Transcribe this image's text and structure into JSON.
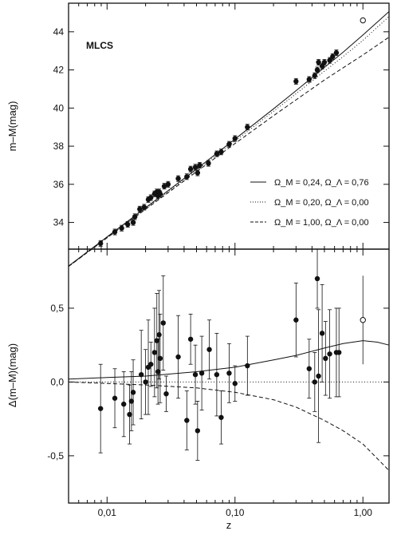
{
  "chart_data": [
    {
      "type": "scatter",
      "panel": "top",
      "annotation": "MLCS",
      "xlabel": "",
      "ylabel": "m–M(mag)",
      "xscale": "log",
      "xlim": [
        0.005,
        1.6
      ],
      "ylim": [
        32.6,
        45.5
      ],
      "y_ticks": [
        34,
        36,
        38,
        40,
        42,
        44
      ],
      "y_tick_labels": [
        "34",
        "36",
        "38",
        "40",
        "42",
        "44"
      ],
      "legend_position": "lower-right",
      "series": [
        {
          "name": "Ω_M = 0,24, Ω_Λ = 0,76",
          "style": "solid",
          "x": [
            0.005,
            0.01,
            0.02,
            0.05,
            0.1,
            0.2,
            0.3,
            0.5,
            0.7,
            1.0,
            1.6
          ],
          "y": [
            31.71,
            33.24,
            34.77,
            36.8,
            38.37,
            39.96,
            40.91,
            42.13,
            42.93,
            43.83,
            45.06
          ]
        },
        {
          "name": "Ω_M = 0,20, Ω_Λ = 0,00",
          "style": "dotted",
          "x": [
            0.005,
            0.01,
            0.02,
            0.05,
            0.1,
            0.2,
            0.3,
            0.5,
            0.7,
            1.0,
            1.6
          ],
          "y": [
            31.69,
            33.2,
            34.72,
            36.73,
            38.27,
            39.83,
            40.75,
            41.93,
            42.7,
            43.55,
            44.8
          ]
        },
        {
          "name": "Ω_M = 1,00, Ω_Λ = 0,00",
          "style": "dashed",
          "x": [
            0.005,
            0.01,
            0.02,
            0.05,
            0.1,
            0.2,
            0.3,
            0.5,
            0.7,
            1.0,
            1.6
          ],
          "y": [
            31.69,
            33.19,
            34.69,
            36.66,
            38.14,
            39.6,
            40.43,
            41.47,
            42.11,
            42.78,
            43.72
          ]
        }
      ],
      "points": {
        "x": [
          0.0089,
          0.0115,
          0.013,
          0.0145,
          0.016,
          0.0165,
          0.018,
          0.0195,
          0.021,
          0.022,
          0.0235,
          0.0245,
          0.025,
          0.0255,
          0.026,
          0.028,
          0.03,
          0.036,
          0.042,
          0.045,
          0.049,
          0.051,
          0.053,
          0.062,
          0.072,
          0.078,
          0.09,
          0.1,
          0.125,
          0.3,
          0.38,
          0.42,
          0.44,
          0.45,
          0.48,
          0.5,
          0.55,
          0.58,
          0.62
        ],
        "y": [
          32.9,
          33.5,
          33.7,
          33.9,
          34.0,
          34.3,
          34.7,
          34.8,
          35.2,
          35.3,
          35.5,
          35.6,
          35.4,
          35.6,
          35.5,
          35.9,
          36.0,
          36.3,
          36.4,
          36.8,
          36.9,
          36.6,
          37.0,
          37.1,
          37.6,
          37.7,
          38.1,
          38.4,
          39.0,
          41.4,
          41.5,
          41.7,
          42.0,
          42.4,
          42.2,
          42.4,
          42.5,
          42.7,
          42.9
        ],
        "open_point": {
          "x": 1.0,
          "y": 44.6
        }
      }
    },
    {
      "type": "scatter",
      "panel": "bottom",
      "xlabel": "z",
      "ylabel": "Δ(m–M)(mag)",
      "xscale": "log",
      "xlim": [
        0.005,
        1.6
      ],
      "ylim": [
        -0.82,
        0.9
      ],
      "x_ticks": [
        0.01,
        0.1,
        1.0
      ],
      "x_tick_labels": [
        "0,01",
        "0,10",
        "1,00"
      ],
      "y_ticks": [
        -0.5,
        0.0,
        0.5
      ],
      "y_tick_labels": [
        "-0,5",
        "0,0",
        "0,5"
      ],
      "series": [
        {
          "name": "Ω_M = 0,24, Ω_Λ = 0,76",
          "style": "solid",
          "x": [
            0.005,
            0.01,
            0.02,
            0.05,
            0.1,
            0.2,
            0.3,
            0.5,
            0.7,
            1.0,
            1.3,
            1.6
          ],
          "y": [
            0.02,
            0.03,
            0.04,
            0.07,
            0.1,
            0.15,
            0.18,
            0.23,
            0.26,
            0.28,
            0.27,
            0.25
          ]
        },
        {
          "name": "Ω_M = 0,20, Ω_Λ = 0,00",
          "style": "dotted",
          "x": [
            0.005,
            1.6
          ],
          "y": [
            0.0,
            0.0
          ]
        },
        {
          "name": "Ω_M = 1,00, Ω_Λ = 0,00",
          "style": "dashed",
          "x": [
            0.005,
            0.01,
            0.02,
            0.05,
            0.1,
            0.2,
            0.3,
            0.5,
            0.7,
            1.0,
            1.3,
            1.6
          ],
          "y": [
            0.0,
            -0.01,
            -0.02,
            -0.04,
            -0.07,
            -0.12,
            -0.17,
            -0.26,
            -0.33,
            -0.42,
            -0.52,
            -0.6
          ]
        }
      ],
      "points": {
        "x": [
          0.0089,
          0.0115,
          0.0135,
          0.015,
          0.0155,
          0.016,
          0.0185,
          0.02,
          0.021,
          0.022,
          0.0235,
          0.0245,
          0.025,
          0.0255,
          0.026,
          0.0275,
          0.029,
          0.036,
          0.042,
          0.045,
          0.049,
          0.051,
          0.055,
          0.063,
          0.072,
          0.078,
          0.09,
          0.1,
          0.125,
          0.3,
          0.38,
          0.42,
          0.44,
          0.45,
          0.48,
          0.51,
          0.55,
          0.62,
          0.65
        ],
        "y": [
          -0.18,
          -0.11,
          -0.15,
          -0.22,
          -0.13,
          -0.07,
          0.05,
          0.0,
          0.1,
          0.12,
          0.2,
          0.28,
          0.07,
          0.32,
          0.16,
          0.4,
          -0.08,
          0.17,
          -0.26,
          0.29,
          0.05,
          -0.33,
          0.06,
          0.22,
          0.05,
          -0.24,
          0.06,
          -0.01,
          0.11,
          0.42,
          0.09,
          0.0,
          0.7,
          0.04,
          0.33,
          0.16,
          0.19,
          0.2,
          0.2
        ],
        "yerr": [
          0.3,
          0.2,
          0.22,
          0.2,
          0.2,
          0.22,
          0.3,
          0.22,
          0.32,
          0.15,
          0.3,
          0.32,
          0.22,
          0.3,
          0.3,
          0.32,
          0.12,
          0.28,
          0.2,
          0.17,
          0.2,
          0.2,
          0.25,
          0.2,
          0.28,
          0.18,
          0.2,
          0.12,
          0.2,
          0.25,
          0.2,
          0.2,
          0.2,
          0.45,
          0.33,
          0.25,
          0.3,
          0.3,
          0.3
        ],
        "open_point": {
          "x": 1.0,
          "y": 0.42,
          "yerr": 0.3
        }
      }
    }
  ]
}
